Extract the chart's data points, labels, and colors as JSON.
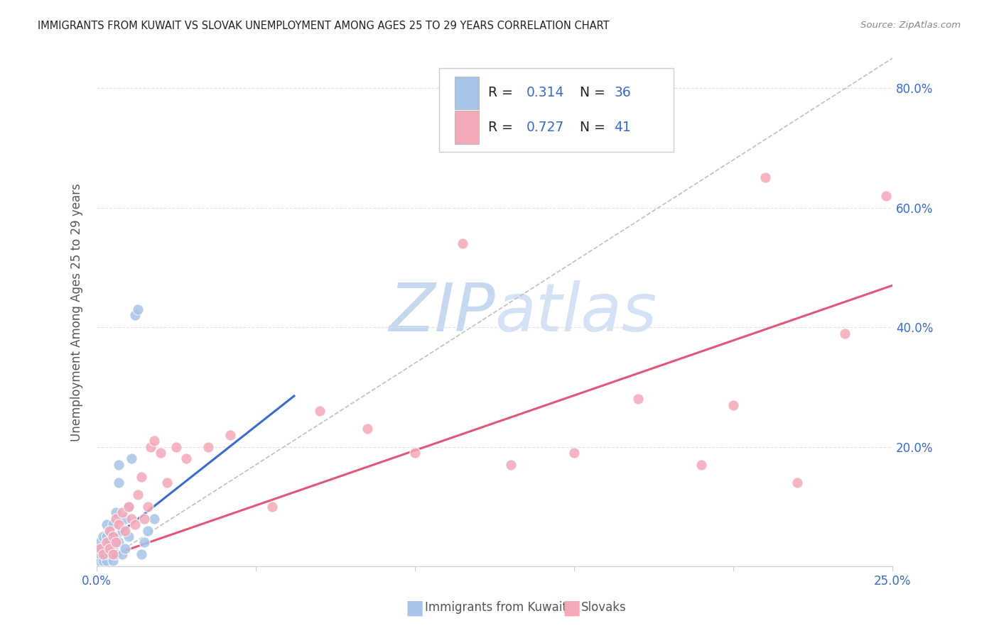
{
  "title": "IMMIGRANTS FROM KUWAIT VS SLOVAK UNEMPLOYMENT AMONG AGES 25 TO 29 YEARS CORRELATION CHART",
  "source": "Source: ZipAtlas.com",
  "ylabel": "Unemployment Among Ages 25 to 29 years",
  "xlim": [
    0,
    0.25
  ],
  "ylim": [
    0,
    0.85
  ],
  "blue_color": "#a8c4e8",
  "pink_color": "#f4a8b8",
  "blue_line_color": "#3a6bc8",
  "pink_line_color": "#e05878",
  "gray_dash_color": "#c0c0c0",
  "blue_R": "0.314",
  "blue_N": "36",
  "pink_R": "0.727",
  "pink_N": "41",
  "legend_text_color": "#222222",
  "legend_val_color": "#3a6bc8",
  "watermark_zip_color": "#c5d8f0",
  "watermark_atlas_color": "#d5e2f5",
  "blue_points_x": [
    0.0008,
    0.001,
    0.001,
    0.0015,
    0.002,
    0.002,
    0.0025,
    0.003,
    0.003,
    0.003,
    0.003,
    0.004,
    0.004,
    0.004,
    0.005,
    0.005,
    0.005,
    0.006,
    0.006,
    0.006,
    0.007,
    0.007,
    0.007,
    0.008,
    0.008,
    0.009,
    0.009,
    0.01,
    0.01,
    0.011,
    0.012,
    0.013,
    0.014,
    0.015,
    0.016,
    0.018
  ],
  "blue_points_y": [
    0.01,
    0.02,
    0.04,
    0.03,
    0.01,
    0.05,
    0.02,
    0.01,
    0.03,
    0.05,
    0.07,
    0.02,
    0.04,
    0.06,
    0.01,
    0.03,
    0.07,
    0.02,
    0.05,
    0.09,
    0.04,
    0.14,
    0.17,
    0.02,
    0.06,
    0.03,
    0.08,
    0.05,
    0.1,
    0.18,
    0.42,
    0.43,
    0.02,
    0.04,
    0.06,
    0.08
  ],
  "pink_points_x": [
    0.001,
    0.002,
    0.003,
    0.004,
    0.004,
    0.005,
    0.005,
    0.006,
    0.006,
    0.007,
    0.008,
    0.009,
    0.01,
    0.011,
    0.012,
    0.013,
    0.014,
    0.015,
    0.016,
    0.017,
    0.018,
    0.02,
    0.022,
    0.025,
    0.028,
    0.035,
    0.042,
    0.055,
    0.07,
    0.085,
    0.1,
    0.115,
    0.13,
    0.15,
    0.17,
    0.19,
    0.2,
    0.21,
    0.22,
    0.235,
    0.248
  ],
  "pink_points_y": [
    0.03,
    0.02,
    0.04,
    0.03,
    0.06,
    0.02,
    0.05,
    0.04,
    0.08,
    0.07,
    0.09,
    0.06,
    0.1,
    0.08,
    0.07,
    0.12,
    0.15,
    0.08,
    0.1,
    0.2,
    0.21,
    0.19,
    0.14,
    0.2,
    0.18,
    0.2,
    0.22,
    0.1,
    0.26,
    0.23,
    0.19,
    0.54,
    0.17,
    0.19,
    0.28,
    0.17,
    0.27,
    0.65,
    0.14,
    0.39,
    0.62
  ],
  "blue_line_x": [
    0.0,
    0.062
  ],
  "blue_line_y": [
    0.025,
    0.285
  ],
  "pink_line_x": [
    0.0,
    0.25
  ],
  "pink_line_y": [
    0.01,
    0.47
  ],
  "diag_line_x": [
    0.0,
    0.25
  ],
  "diag_line_y": [
    0.0,
    0.85
  ],
  "background_color": "#ffffff",
  "grid_color": "#e0e0e0",
  "title_color": "#222222"
}
